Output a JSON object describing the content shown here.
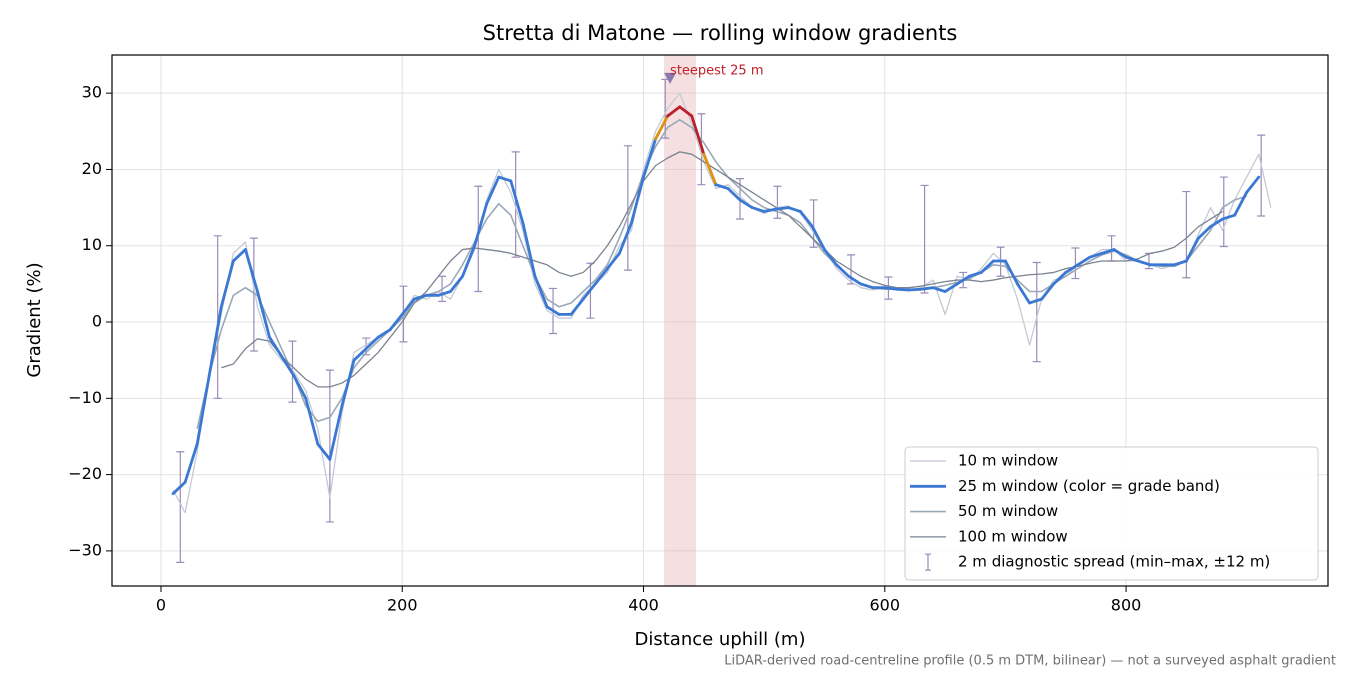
{
  "chart_data": {
    "type": "line",
    "title": "Stretta di Matone — rolling window gradients",
    "xlabel": "Distance uphill (m)",
    "ylabel": "Gradient (%)",
    "footnote": "LiDAR-derived road-centreline profile (0.5 m DTM, bilinear) — not a surveyed asphalt gradient",
    "xlim": [
      -40.6,
      967.4
    ],
    "ylim": [
      -34.6,
      35
    ],
    "xticks": [
      0,
      200,
      400,
      600,
      800
    ],
    "yticks": [
      {
        "value": -30,
        "label": "−30"
      },
      {
        "value": -20,
        "label": "−20"
      },
      {
        "value": -10,
        "label": "−10"
      },
      0,
      10,
      20,
      30
    ],
    "grid": true,
    "legend": "lower right",
    "x": [
      10,
      20,
      30,
      40,
      50,
      60,
      70,
      80,
      90,
      100,
      110,
      120,
      130,
      140,
      150,
      160,
      170,
      180,
      190,
      200,
      210,
      220,
      230,
      240,
      250,
      260,
      270,
      280,
      290,
      300,
      310,
      320,
      330,
      340,
      350,
      360,
      370,
      380,
      390,
      400,
      410,
      420,
      430,
      440,
      450,
      460,
      470,
      480,
      490,
      500,
      510,
      520,
      530,
      540,
      550,
      560,
      570,
      580,
      590,
      600,
      610,
      620,
      630,
      640,
      650,
      660,
      670,
      680,
      690,
      700,
      710,
      720,
      730,
      740,
      750,
      760,
      770,
      780,
      790,
      800,
      810,
      820,
      830,
      840,
      850,
      860,
      870,
      880,
      890,
      900,
      910,
      920
    ],
    "series": [
      {
        "name": "10 m window",
        "color": "#c3cad6",
        "values": [
          -22,
          -25,
          -17,
          -7,
          1,
          9,
          10.5,
          2,
          -3,
          -5,
          -6.5,
          -9,
          -14,
          -23,
          -12,
          -4,
          -3,
          -2,
          -1,
          1,
          3.5,
          3,
          4,
          3,
          6,
          9.5,
          16,
          20,
          17,
          12,
          5,
          1.5,
          0.5,
          0.5,
          3.5,
          5,
          6.5,
          10,
          12,
          20,
          25,
          28,
          30,
          26,
          21,
          17.5,
          18,
          16.5,
          15,
          14.2,
          15,
          15.2,
          14.3,
          12,
          9.5,
          7,
          5.5,
          4.5,
          4.2,
          4.5,
          4.2,
          4.1,
          4.5,
          5.5,
          1,
          6,
          5.5,
          7,
          9,
          7.5,
          3,
          -3,
          3,
          5.5,
          6,
          7.5,
          8.5,
          9.5,
          9.5,
          8,
          8,
          7.5,
          7,
          7.5,
          8,
          11.5,
          15,
          12,
          16,
          19,
          22,
          15
        ]
      },
      {
        "name": "25 m window (color = grade band)",
        "color": "#3a78d4",
        "values": [
          -22.5,
          -21,
          -16,
          -7,
          2,
          8,
          9.5,
          4,
          -2,
          -4.5,
          -7,
          -10,
          -16,
          -18,
          -11,
          -5,
          -3.5,
          -2,
          -1,
          1,
          3,
          3.5,
          3.5,
          4,
          6,
          10,
          15.5,
          19,
          18.5,
          13,
          6,
          2,
          1,
          1,
          3,
          5,
          7,
          9,
          13,
          19,
          24,
          27,
          28.2,
          27,
          22,
          18,
          17.5,
          16,
          15,
          14.5,
          14.8,
          15,
          14.5,
          12.5,
          9.5,
          7.5,
          6,
          5,
          4.5,
          4.5,
          4.3,
          4.2,
          4.3,
          4.5,
          4,
          5,
          6,
          6.5,
          8,
          8,
          5,
          2.5,
          3,
          5,
          6.5,
          7.5,
          8.5,
          9,
          9.5,
          8.5,
          8,
          7.5,
          7.5,
          7.5,
          8,
          11,
          12.5,
          13.5,
          14,
          17,
          19,
          null
        ],
        "colors": [
          "#3a78d4",
          "#3a78d4",
          "#3a78d4",
          "#3a78d4",
          "#3a78d4",
          "#3a78d4",
          "#3a78d4",
          "#3a78d4",
          "#3a78d4",
          "#3a78d4",
          "#3a78d4",
          "#3a78d4",
          "#3a78d4",
          "#3a78d4",
          "#3a78d4",
          "#3a78d4",
          "#3a78d4",
          "#3a78d4",
          "#3a78d4",
          "#3a78d4",
          "#3a78d4",
          "#3a78d4",
          "#3a78d4",
          "#3a78d4",
          "#3a78d4",
          "#3a78d4",
          "#3a78d4",
          "#3a78d4",
          "#3a78d4",
          "#3a78d4",
          "#3a78d4",
          "#3a78d4",
          "#3a78d4",
          "#3a78d4",
          "#3a78d4",
          "#3a78d4",
          "#3a78d4",
          "#3a78d4",
          "#3a78d4",
          "#3a78d4",
          "#e0900f",
          "#b8202a",
          "#b8202a",
          "#b8202a",
          "#e0900f",
          "#3a78d4",
          "#3a78d4",
          "#3a78d4",
          "#3a78d4",
          "#3a78d4",
          "#3a78d4",
          "#3a78d4",
          "#3a78d4",
          "#3a78d4",
          "#3a78d4",
          "#3a78d4",
          "#3a78d4",
          "#3a78d4",
          "#3a78d4",
          "#3a78d4",
          "#3a78d4",
          "#3a78d4",
          "#3a78d4",
          "#3a78d4",
          "#3a78d4",
          "#3a78d4",
          "#3a78d4",
          "#3a78d4",
          "#3a78d4",
          "#3a78d4",
          "#3a78d4",
          "#3a78d4",
          "#3a78d4",
          "#3a78d4",
          "#3a78d4",
          "#3a78d4",
          "#3a78d4",
          "#3a78d4",
          "#3a78d4",
          "#3a78d4",
          "#3a78d4",
          "#3a78d4",
          "#3a78d4",
          "#3a78d4",
          "#3a78d4",
          "#3a78d4",
          "#3a78d4",
          "#3a78d4",
          "#3a78d4",
          "#3a78d4",
          "#3a78d4",
          "#3a78d4"
        ]
      },
      {
        "name": "50 m window",
        "color": "#9ba8b8",
        "values": [
          null,
          null,
          -14,
          -7,
          -1,
          3.5,
          4.5,
          3.5,
          0,
          -3.5,
          -7,
          -11,
          -13,
          -12.5,
          -10,
          -6,
          -4,
          -2.5,
          -1,
          0.5,
          2.5,
          3.5,
          4,
          5,
          7.5,
          10.5,
          13.5,
          15.5,
          14,
          10,
          6,
          3,
          2,
          2.5,
          4,
          5.5,
          7.5,
          11,
          15,
          19.5,
          23,
          25.5,
          26.5,
          25.5,
          23.5,
          21,
          19,
          17.5,
          16,
          15,
          14.5,
          14,
          13,
          11,
          9,
          7.5,
          6,
          5,
          4.5,
          4.3,
          4.3,
          4.3,
          4.3,
          4.5,
          4.8,
          5.2,
          5.7,
          6.5,
          7.5,
          7.3,
          5.5,
          4,
          4,
          5,
          6,
          7,
          8,
          8.8,
          9.3,
          8.8,
          8,
          7.6,
          7.3,
          7.3,
          8,
          10,
          12,
          15,
          16,
          16.5,
          null,
          null
        ]
      },
      {
        "name": "100 m window",
        "color": "#7b8390",
        "values": [
          null,
          null,
          null,
          null,
          -6,
          -5.5,
          -3.5,
          -2.2,
          -2.5,
          -4.5,
          -6,
          -7.5,
          -8.5,
          -8.5,
          -8,
          -7,
          -5.5,
          -4,
          -2,
          0,
          2.5,
          4,
          6,
          8,
          9.5,
          9.7,
          9.5,
          9.3,
          9,
          8.5,
          8,
          7.5,
          6.5,
          6,
          6.5,
          8,
          10,
          12.5,
          15.5,
          18.5,
          20.5,
          21.5,
          22.3,
          22,
          21,
          20,
          19,
          18,
          17,
          16,
          15,
          14,
          12.5,
          11,
          9.5,
          8,
          7,
          6,
          5.3,
          4.8,
          4.5,
          4.5,
          4.7,
          5,
          5.3,
          5.5,
          5.5,
          5.3,
          5.5,
          5.8,
          6,
          6.2,
          6.3,
          6.5,
          7,
          7.3,
          7.7,
          8,
          8,
          8,
          8.3,
          9,
          9.3,
          9.8,
          11,
          12.5,
          13.5,
          14.5,
          null,
          null,
          null,
          null
        ]
      }
    ],
    "errorbars": {
      "name": "2 m diagnostic spread (min–max, ±12 m)",
      "color": "#9a8cb8",
      "x": [
        16,
        47,
        77,
        109,
        140,
        170,
        201,
        233,
        263,
        294,
        325,
        356,
        387,
        418,
        448,
        480,
        511,
        541,
        572,
        603,
        633,
        665,
        696,
        726,
        758,
        788,
        819,
        850,
        881,
        912
      ],
      "low": [
        -31.5,
        -10,
        -3.8,
        -10.5,
        -26.2,
        -4.3,
        -2.6,
        2.7,
        4,
        8.5,
        -1.5,
        0.5,
        6.8,
        24.1,
        18,
        13.5,
        13.6,
        9.8,
        5,
        3,
        3.8,
        4.5,
        6,
        -5.2,
        5.7,
        8,
        7,
        5.8,
        9.9,
        13.9
      ],
      "high": [
        -17,
        11.3,
        11,
        -2.5,
        -6.3,
        -2.1,
        4.7,
        6,
        17.8,
        22.3,
        4.4,
        7.7,
        23.1,
        31.8,
        27.3,
        18.8,
        17.8,
        16,
        8.8,
        5.9,
        17.9,
        6.5,
        9.8,
        7.8,
        9.7,
        11.3,
        9,
        17.1,
        19,
        24.5
      ]
    },
    "span": {
      "x": [
        417,
        443.5
      ],
      "color": "#e6a3aa"
    },
    "annotation": {
      "text": "steepest 25 m",
      "x": 422,
      "y": 32,
      "color": "#c0202a",
      "marker_color": "#8a78b0"
    }
  }
}
